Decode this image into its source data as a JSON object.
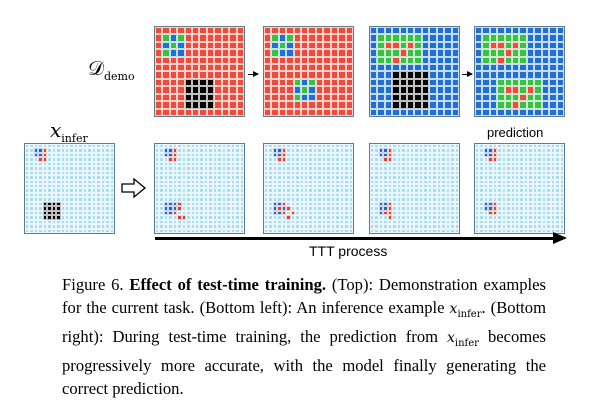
{
  "labels": {
    "d_demo_symbol": "𝒟",
    "d_demo_subscript": "demo",
    "x_infer_symbol": "x",
    "x_infer_subscript": "infer",
    "prediction": "prediction",
    "ttt_process": "TTT process"
  },
  "caption": {
    "figure": "Figure 6.",
    "title": "Effect of test-time training.",
    "part1": " (Top): Demonstration examples for the current task. (Bottom left): An inference example ",
    "x1": "x",
    "x1_sub": "infer",
    "part2": ". (Bottom right): During test-time training, the prediction from ",
    "x2": "x",
    "x2_sub": "infer",
    "part3": " becomes progressively more accurate, with the model finally generating the correct prediction."
  },
  "colors": {
    "red": "#ef4a3a",
    "green": "#36c242",
    "blue": "#1f6fd6",
    "black": "#050505",
    "cyan": "#a9def2",
    "dark_blue": "#2f63b8",
    "dark_red": "#d9452e"
  }
}
